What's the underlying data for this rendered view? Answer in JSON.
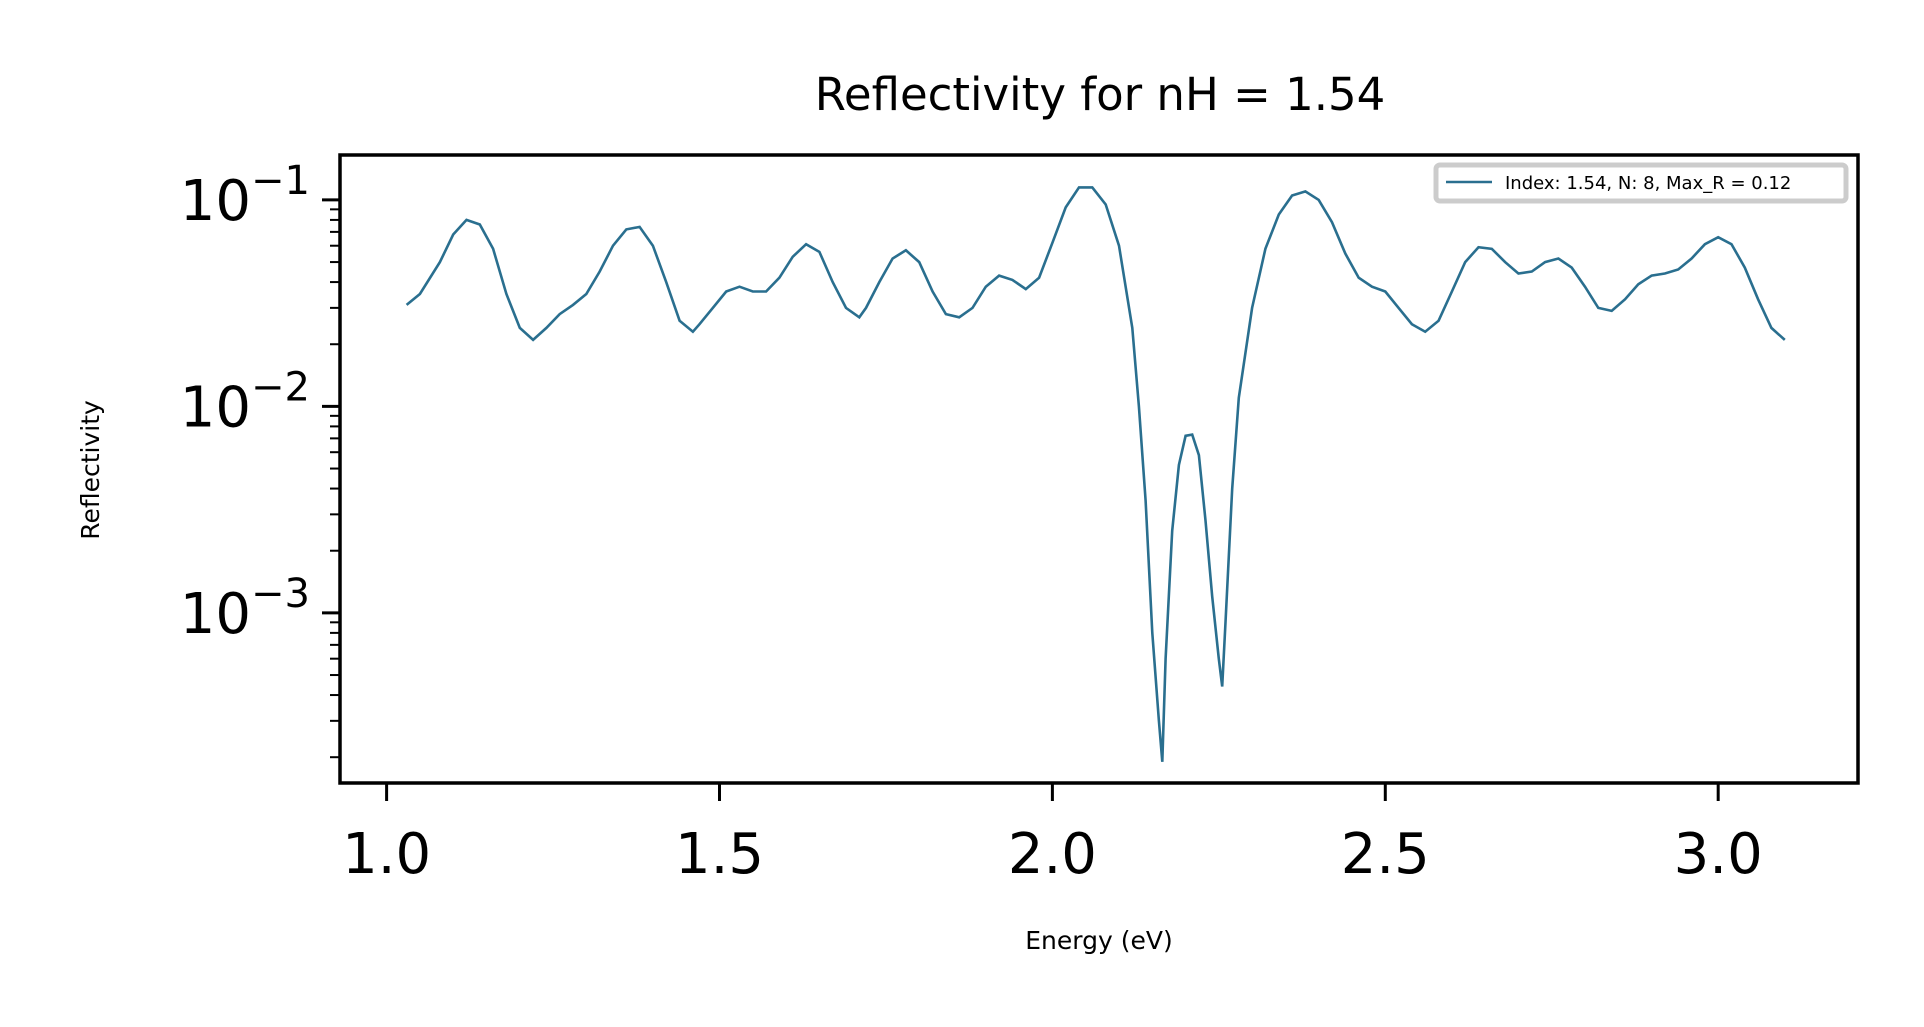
{
  "chart_data": {
    "type": "line",
    "title": "Reflectivity for nH = 1.54",
    "xlabel": "Energy (eV)",
    "ylabel": "Reflectivity",
    "xlim": [
      0.93,
      3.21
    ],
    "ylim": [
      0.00015,
      0.165
    ],
    "yscale": "log",
    "x_ticks": [
      1.0,
      1.5,
      2.0,
      2.5,
      3.0
    ],
    "x_tick_labels": [
      "1.0",
      "1.5",
      "2.0",
      "2.5",
      "3.0"
    ],
    "y_ticks": [
      {
        "value": 0.1,
        "base": "10",
        "exp": "−1"
      },
      {
        "value": 0.01,
        "base": "10",
        "exp": "−2"
      },
      {
        "value": 0.001,
        "base": "10",
        "exp": "−3"
      }
    ],
    "grid": false,
    "legend_position": "top-right",
    "line_color": "#2a6f8f",
    "series": [
      {
        "name": "Index: 1.54, N: 8, Max_R = 0.12",
        "x": [
          1.03,
          1.05,
          1.08,
          1.1,
          1.12,
          1.14,
          1.16,
          1.18,
          1.2,
          1.22,
          1.24,
          1.26,
          1.28,
          1.3,
          1.32,
          1.34,
          1.36,
          1.38,
          1.4,
          1.42,
          1.44,
          1.46,
          1.47,
          1.49,
          1.51,
          1.53,
          1.55,
          1.57,
          1.59,
          1.61,
          1.63,
          1.65,
          1.67,
          1.69,
          1.71,
          1.72,
          1.74,
          1.76,
          1.78,
          1.8,
          1.82,
          1.84,
          1.86,
          1.88,
          1.9,
          1.92,
          1.94,
          1.96,
          1.98,
          2.0,
          2.02,
          2.04,
          2.06,
          2.08,
          2.1,
          2.12,
          2.13,
          2.14,
          2.15,
          2.16,
          2.165,
          2.17,
          2.18,
          2.19,
          2.2,
          2.21,
          2.22,
          2.23,
          2.24,
          2.25,
          2.255,
          2.26,
          2.27,
          2.28,
          2.3,
          2.32,
          2.34,
          2.36,
          2.38,
          2.4,
          2.42,
          2.44,
          2.46,
          2.48,
          2.5,
          2.52,
          2.54,
          2.56,
          2.58,
          2.6,
          2.62,
          2.64,
          2.66,
          2.68,
          2.7,
          2.72,
          2.74,
          2.76,
          2.78,
          2.8,
          2.82,
          2.84,
          2.86,
          2.88,
          2.9,
          2.92,
          2.94,
          2.96,
          2.98,
          3.0,
          3.02,
          3.04,
          3.06,
          3.08,
          3.1
        ],
        "values": [
          0.031,
          0.035,
          0.05,
          0.068,
          0.08,
          0.076,
          0.058,
          0.035,
          0.024,
          0.021,
          0.024,
          0.028,
          0.031,
          0.035,
          0.045,
          0.06,
          0.072,
          0.074,
          0.06,
          0.04,
          0.026,
          0.023,
          0.025,
          0.03,
          0.036,
          0.038,
          0.036,
          0.036,
          0.042,
          0.053,
          0.061,
          0.056,
          0.04,
          0.03,
          0.027,
          0.03,
          0.04,
          0.052,
          0.057,
          0.05,
          0.036,
          0.028,
          0.027,
          0.03,
          0.038,
          0.043,
          0.041,
          0.037,
          0.042,
          0.062,
          0.092,
          0.115,
          0.115,
          0.095,
          0.06,
          0.024,
          0.01,
          0.0035,
          0.0008,
          0.0003,
          0.00019,
          0.0006,
          0.0025,
          0.0052,
          0.0072,
          0.0073,
          0.0058,
          0.0028,
          0.0012,
          0.0006,
          0.00044,
          0.0009,
          0.004,
          0.011,
          0.03,
          0.058,
          0.085,
          0.105,
          0.11,
          0.1,
          0.078,
          0.055,
          0.042,
          0.038,
          0.036,
          0.03,
          0.025,
          0.023,
          0.026,
          0.036,
          0.05,
          0.059,
          0.058,
          0.05,
          0.044,
          0.045,
          0.05,
          0.052,
          0.047,
          0.038,
          0.03,
          0.029,
          0.033,
          0.039,
          0.043,
          0.044,
          0.046,
          0.052,
          0.061,
          0.066,
          0.061,
          0.047,
          0.033,
          0.024,
          0.021
        ]
      }
    ]
  }
}
